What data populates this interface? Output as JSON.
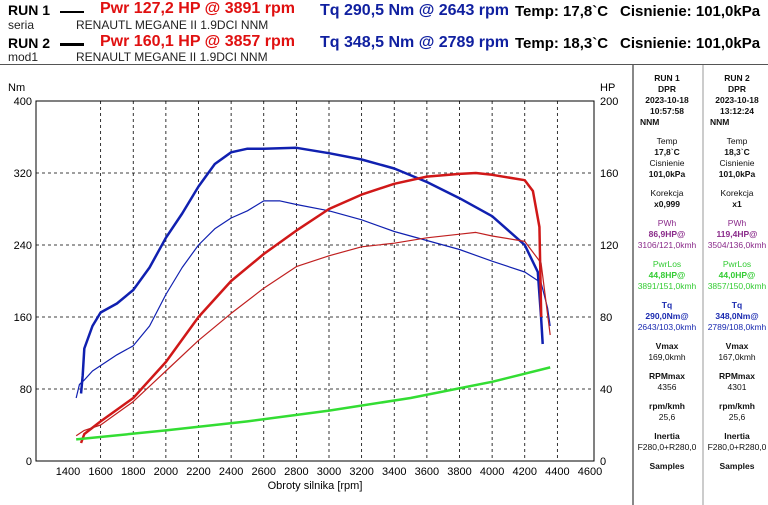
{
  "header": {
    "runs": [
      {
        "label": "RUN 1",
        "name": "seria",
        "vehicle": "RENAUTL MEGANE II 1.9DCI NNM",
        "pwr": "Pwr  127,2 HP @ 3891 rpm",
        "tq": "Tq 290,5 Nm @ 2643 rpm",
        "temp": "Temp: 17,8`C",
        "pressure": "Cisnienie: 101,0kPa"
      },
      {
        "label": "RUN 2",
        "name": "mod1",
        "vehicle": "RENAULT MEGANE II 1.9DCI NNM",
        "pwr": "Pwr  160,1 HP @ 3857 rpm",
        "tq": "Tq 348,5 Nm @ 2789 rpm",
        "temp": "Temp: 18,3`C",
        "pressure": "Cisnienie: 101,0kPa"
      }
    ]
  },
  "panel": [
    {
      "run": "RUN 1",
      "type": "DPR",
      "date": "2023-10-18",
      "time": "10:57:58",
      "note": "NNM",
      "temp_label": "Temp",
      "temp": "17,8`C",
      "press_label": "Cisnienie",
      "press": "101,0kPa",
      "kor_label": "Korekcja",
      "kor": "x0,999",
      "pwh_label": "PWh",
      "pwh": "86,9HP@",
      "pwh_at": "3106/121,0kmh",
      "los_label": "PwrLos",
      "los": "44,8HP@",
      "los_at": "3891/151,0kmh",
      "tq_label": "Tq",
      "tq": "290,0Nm@",
      "tq_at": "2643/103,0kmh",
      "vmax_label": "Vmax",
      "vmax": "169,0kmh",
      "rpm_label": "RPMmax",
      "rpm": "4356",
      "rk_label": "rpm/kmh",
      "rk": "25,6",
      "in_label": "Inertia",
      "in": "F280,0+R280,0",
      "samples_label": "Samples"
    },
    {
      "run": "RUN 2",
      "type": "DPR",
      "date": "2023-10-18",
      "time": "13:12:24",
      "note": "NNM",
      "temp_label": "Temp",
      "temp": "18,3`C",
      "press_label": "Cisnienie",
      "press": "101,0kPa",
      "kor_label": "Korekcja",
      "kor": "x1",
      "pwh_label": "PWh",
      "pwh": "119,4HP@",
      "pwh_at": "3504/136,0kmh",
      "los_label": "PwrLos",
      "los": "44,0HP@",
      "los_at": "3857/150,0kmh",
      "tq_label": "Tq",
      "tq": "348,0Nm@",
      "tq_at": "2789/108,0kmh",
      "vmax_label": "Vmax",
      "vmax": "167,0kmh",
      "rpm_label": "RPMmax",
      "rpm": "4301",
      "rk_label": "rpm/kmh",
      "rk": "25,6",
      "in_label": "Inertia",
      "in": "F280,0+R280,0",
      "samples_label": "Samples"
    }
  ],
  "chart_data": {
    "type": "line",
    "xlabel": "Obroty silnika [rpm]",
    "ylabel_left": "Nm",
    "ylabel_right": "HP",
    "xlim": [
      1400,
      4600
    ],
    "ylim_left": [
      0,
      400
    ],
    "ylim_right": [
      0,
      200
    ],
    "xticks": [
      1400,
      1600,
      1800,
      2000,
      2200,
      2400,
      2600,
      2800,
      3000,
      3200,
      3400,
      3600,
      3800,
      4000,
      4200,
      4400,
      4600
    ],
    "yticks_left": [
      0,
      80,
      160,
      240,
      320,
      400
    ],
    "yticks_right": [
      0,
      40,
      80,
      120,
      160,
      200
    ],
    "grid": true,
    "series": [
      {
        "name": "Run 2 torque",
        "axis": "left",
        "color": "#1020b0",
        "width": 2.5,
        "points": [
          [
            1480,
            75
          ],
          [
            1490,
            95
          ],
          [
            1500,
            125
          ],
          [
            1550,
            150
          ],
          [
            1600,
            165
          ],
          [
            1700,
            175
          ],
          [
            1800,
            190
          ],
          [
            1900,
            215
          ],
          [
            2000,
            248
          ],
          [
            2100,
            275
          ],
          [
            2200,
            305
          ],
          [
            2300,
            330
          ],
          [
            2400,
            343
          ],
          [
            2500,
            347
          ],
          [
            2600,
            347
          ],
          [
            2800,
            348
          ],
          [
            3000,
            342
          ],
          [
            3200,
            335
          ],
          [
            3400,
            325
          ],
          [
            3600,
            310
          ],
          [
            3800,
            292
          ],
          [
            4000,
            272
          ],
          [
            4200,
            240
          ],
          [
            4280,
            210
          ],
          [
            4300,
            160
          ],
          [
            4310,
            130
          ]
        ]
      },
      {
        "name": "Run 1 torque",
        "axis": "left",
        "color": "#1020b0",
        "width": 1.2,
        "points": [
          [
            1450,
            70
          ],
          [
            1470,
            85
          ],
          [
            1500,
            90
          ],
          [
            1550,
            100
          ],
          [
            1700,
            118
          ],
          [
            1800,
            128
          ],
          [
            1900,
            150
          ],
          [
            2000,
            185
          ],
          [
            2100,
            215
          ],
          [
            2200,
            240
          ],
          [
            2300,
            258
          ],
          [
            2400,
            270
          ],
          [
            2500,
            278
          ],
          [
            2600,
            289
          ],
          [
            2700,
            289
          ],
          [
            2800,
            285
          ],
          [
            3000,
            278
          ],
          [
            3200,
            268
          ],
          [
            3400,
            255
          ],
          [
            3600,
            245
          ],
          [
            3800,
            235
          ],
          [
            4000,
            222
          ],
          [
            4200,
            210
          ],
          [
            4300,
            198
          ],
          [
            4340,
            170
          ],
          [
            4356,
            150
          ]
        ]
      },
      {
        "name": "Run 2 power",
        "axis": "right",
        "color": "#d01818",
        "width": 2.5,
        "points": [
          [
            1480,
            10
          ],
          [
            1500,
            15
          ],
          [
            1600,
            22
          ],
          [
            1800,
            35
          ],
          [
            2000,
            55
          ],
          [
            2200,
            80
          ],
          [
            2400,
            100
          ],
          [
            2600,
            115
          ],
          [
            2800,
            128
          ],
          [
            3000,
            140
          ],
          [
            3200,
            148
          ],
          [
            3400,
            154
          ],
          [
            3600,
            158
          ],
          [
            3800,
            159.5
          ],
          [
            3900,
            160
          ],
          [
            4000,
            159
          ],
          [
            4200,
            156
          ],
          [
            4250,
            150
          ],
          [
            4290,
            130
          ],
          [
            4301,
            80
          ]
        ]
      },
      {
        "name": "Run 1 power",
        "axis": "right",
        "color": "#c02020",
        "width": 1.2,
        "points": [
          [
            1450,
            14
          ],
          [
            1500,
            17
          ],
          [
            1600,
            20
          ],
          [
            1800,
            33
          ],
          [
            2000,
            50
          ],
          [
            2200,
            67
          ],
          [
            2400,
            82
          ],
          [
            2600,
            96
          ],
          [
            2800,
            108
          ],
          [
            3000,
            114
          ],
          [
            3200,
            119
          ],
          [
            3400,
            121
          ],
          [
            3600,
            124
          ],
          [
            3800,
            126
          ],
          [
            3900,
            127
          ],
          [
            4000,
            125
          ],
          [
            4200,
            122
          ],
          [
            4300,
            110
          ],
          [
            4356,
            70
          ]
        ]
      },
      {
        "name": "Power loss",
        "axis": "right",
        "color": "#33dd33",
        "width": 2.5,
        "points": [
          [
            1450,
            12
          ],
          [
            2000,
            17
          ],
          [
            2500,
            22
          ],
          [
            3000,
            28
          ],
          [
            3500,
            35
          ],
          [
            4000,
            44
          ],
          [
            4356,
            52
          ]
        ]
      }
    ]
  }
}
